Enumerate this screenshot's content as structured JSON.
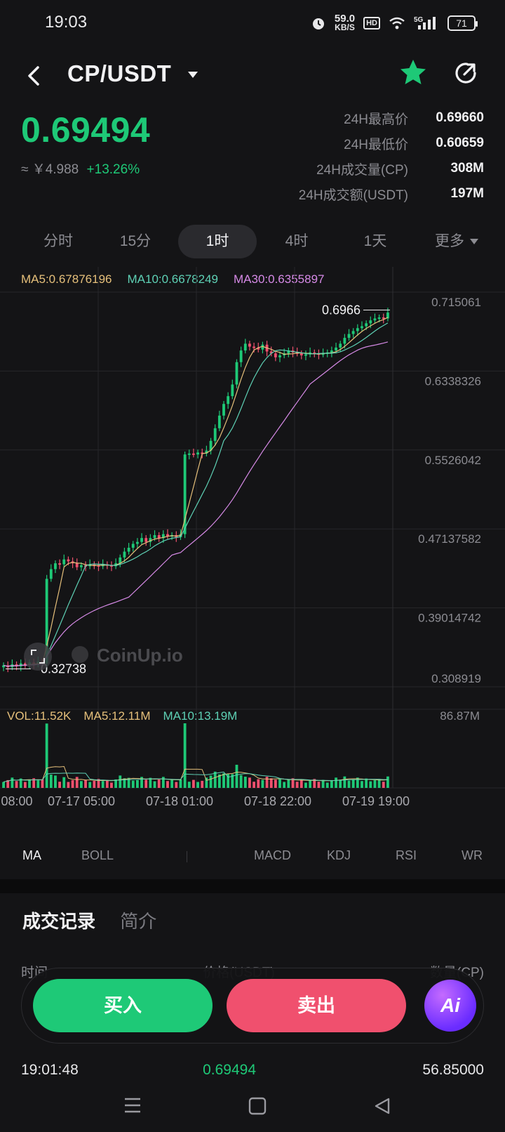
{
  "status_bar": {
    "time": "19:03",
    "net_speed": "59.0",
    "net_unit": "KB/S",
    "hd": "HD",
    "signal": "5G",
    "battery": "71"
  },
  "header": {
    "pair": "CP/USDT",
    "icons": [
      "back-icon",
      "star-icon",
      "share-icon"
    ]
  },
  "price": {
    "last": "0.69494",
    "cny": "≈ ￥4.988",
    "change": "+13.26%"
  },
  "stats": [
    {
      "label": "24H最高价",
      "value": "0.69660"
    },
    {
      "label": "24H最低价",
      "value": "0.60659"
    },
    {
      "label": "24H成交量(CP)",
      "value": "308M"
    },
    {
      "label": "24H成交额(USDT)",
      "value": "197M"
    }
  ],
  "tabs": [
    "分时",
    "15分",
    "1时",
    "4时",
    "1天",
    "更多"
  ],
  "active_tab": "1时",
  "ma_legend": {
    "ma5": "MA5:0.67876196",
    "ma10": "MA10:0.6678249",
    "ma30": "MA30:0.6355897"
  },
  "colors": {
    "up": "#1ec977",
    "down": "#f0506e",
    "ma5": "#e6c07b",
    "ma10": "#5ed1b5",
    "ma30": "#d68ae6"
  },
  "chart_data": {
    "type": "candlestick",
    "y_ticks": [
      "0.715061",
      "0.6338326",
      "0.5526042",
      "0.47137582",
      "0.39014742",
      "0.308919"
    ],
    "ylim": [
      0.308919,
      0.715061
    ],
    "x_ticks": [
      "08:00",
      "07-17 05:00",
      "07-18 01:00",
      "07-18 22:00",
      "07-19 19:00"
    ],
    "high_marker": "0.6966",
    "low_marker": "0.32738",
    "watermark": "CoinUp.io",
    "closes": [
      0.331,
      0.329,
      0.332,
      0.33,
      0.333,
      0.331,
      0.334,
      0.332,
      0.335,
      0.333,
      0.42,
      0.43,
      0.436,
      0.435,
      0.44,
      0.438,
      0.436,
      0.432,
      0.434,
      0.433,
      0.435,
      0.434,
      0.433,
      0.435,
      0.434,
      0.433,
      0.436,
      0.442,
      0.448,
      0.452,
      0.456,
      0.458,
      0.462,
      0.458,
      0.462,
      0.465,
      0.462,
      0.466,
      0.464,
      0.465,
      0.463,
      0.466,
      0.548,
      0.549,
      0.548,
      0.55,
      0.549,
      0.552,
      0.562,
      0.575,
      0.588,
      0.6,
      0.608,
      0.62,
      0.643,
      0.655,
      0.662,
      0.659,
      0.658,
      0.656,
      0.661,
      0.654,
      0.652,
      0.648,
      0.65,
      0.652,
      0.655,
      0.653,
      0.652,
      0.65,
      0.651,
      0.653,
      0.652,
      0.651,
      0.652,
      0.653,
      0.655,
      0.658,
      0.662,
      0.668,
      0.672,
      0.675,
      0.678,
      0.68,
      0.683,
      0.686,
      0.688,
      0.689,
      0.688,
      0.694
    ],
    "volume_max": "86.87M"
  },
  "vol_legend": {
    "vol": "VOL:11.52K",
    "ma5": "MA5:12.11M",
    "ma10": "MA10:13.19M"
  },
  "indicators": [
    "MA",
    "BOLL",
    "MACD",
    "KDJ",
    "RSI",
    "WR"
  ],
  "trades": {
    "tabs": [
      "成交记录",
      "简介"
    ],
    "headers": [
      "时间",
      "价格(USDT)",
      "数量(CP)"
    ],
    "rows": [
      {
        "time": "19:01:48",
        "price": "0.69494",
        "qty": "56.85000"
      }
    ]
  },
  "actions": {
    "buy": "买入",
    "sell": "卖出",
    "ai": "Ai"
  }
}
